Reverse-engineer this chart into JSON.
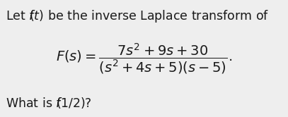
{
  "background_color": "#eeeeee",
  "line1": "Let $f\\!\\!(t)$ be the inverse Laplace transform of",
  "formula": "$F(s) = \\dfrac{7s^2 + 9s + 30}{(s^2 + 4s + 5)(s - 5)}.$",
  "line3": "What is $f\\!\\!(1/2)$?",
  "text_color": "#1a1a1a",
  "font_size_main": 12.5,
  "font_size_formula": 14.0,
  "fig_width": 4.07,
  "fig_height": 1.66,
  "dpi": 100
}
